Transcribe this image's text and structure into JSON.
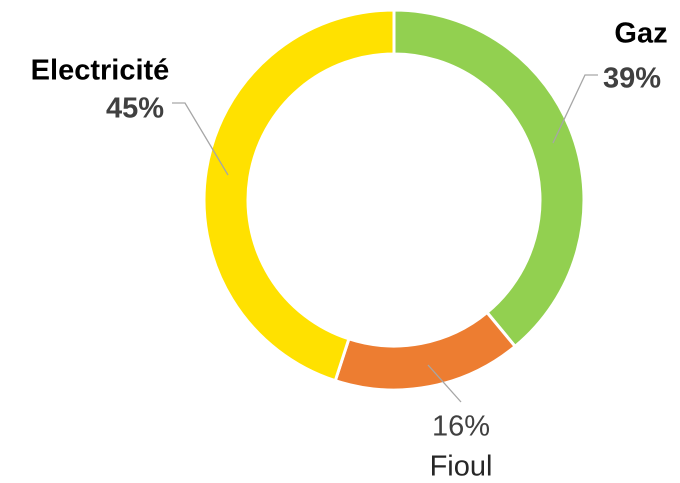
{
  "chart_data": {
    "type": "donut",
    "categories": [
      "Gaz",
      "Fioul",
      "Electricité"
    ],
    "values": [
      39,
      16,
      45
    ],
    "value_labels": [
      "39%",
      "16%",
      "45%"
    ],
    "colors": [
      "#92d050",
      "#ed7d31",
      "#ffe100"
    ]
  }
}
